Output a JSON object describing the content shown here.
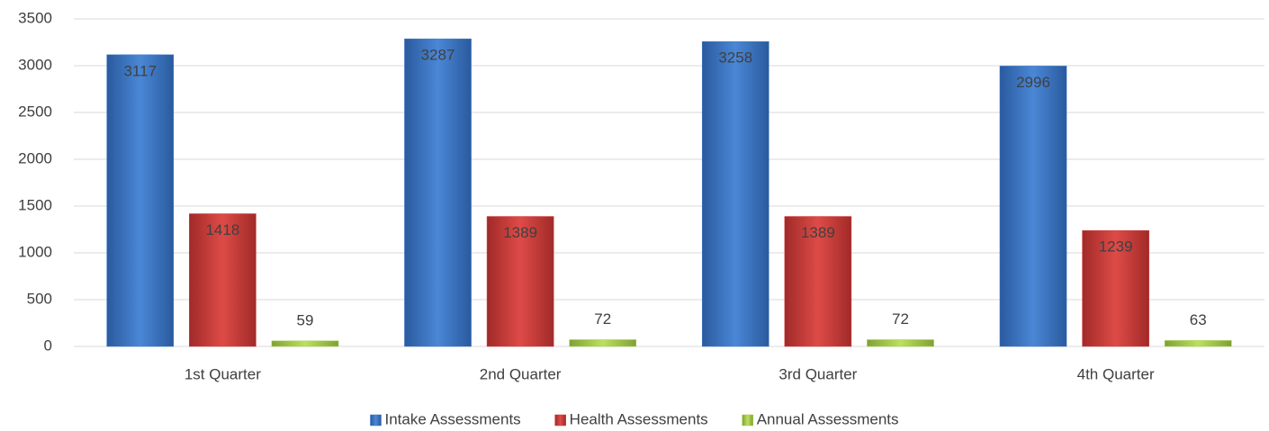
{
  "chart_data": {
    "type": "bar",
    "categories": [
      "1st Quarter",
      "2nd Quarter",
      "3rd Quarter",
      "4th Quarter"
    ],
    "series": [
      {
        "name": "Intake Assessments",
        "color": "#3b76c6",
        "values": [
          3117,
          3287,
          3258,
          2996
        ]
      },
      {
        "name": "Health Assessments",
        "color": "#d03a37",
        "values": [
          1418,
          1389,
          1389,
          1239
        ]
      },
      {
        "name": "Annual Assessments",
        "color": "#a4cc4a",
        "values": [
          59,
          72,
          72,
          63
        ]
      }
    ],
    "ylim": [
      0,
      3500
    ],
    "yticks": [
      0,
      500,
      1000,
      1500,
      2000,
      2500,
      3000,
      3500
    ],
    "grid": true,
    "legend": "bottom"
  }
}
